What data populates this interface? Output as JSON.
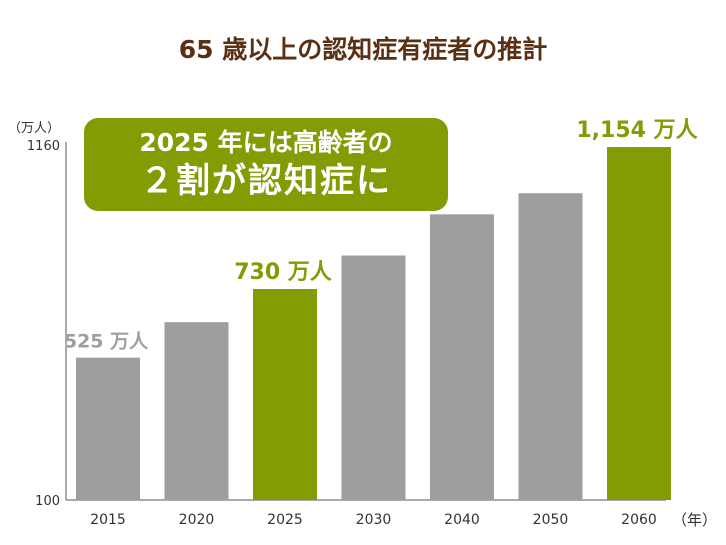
{
  "chart_data": {
    "type": "bar",
    "title": "65 歳以上の認知症有症者の推計",
    "y_unit_label": "（万人）",
    "x_unit_label": "（年）",
    "categories": [
      "2015",
      "2020",
      "2025",
      "2030",
      "2040",
      "2050",
      "2060"
    ],
    "values": [
      525,
      631,
      730,
      830,
      953,
      1016,
      1154
    ],
    "highlight": [
      false,
      false,
      true,
      false,
      false,
      false,
      true
    ],
    "ylim": [
      100,
      1160
    ],
    "y_ticks": [
      "1160",
      "100"
    ],
    "data_labels": [
      {
        "category": "2015",
        "text": "525 万人",
        "highlight": false
      },
      {
        "category": "2025",
        "text": "730 万人",
        "highlight": true
      },
      {
        "category": "2060",
        "text": "1,154 万人",
        "highlight": true
      }
    ],
    "grid": false,
    "legend": "none"
  },
  "callout": {
    "line1": "2025 年には高齢者の",
    "line2": "２割が認知症に"
  },
  "colors": {
    "title": "#5a2f12",
    "bar_default": "#9e9e9e",
    "bar_highlight": "#849b04",
    "label_default": "#9e9e9e",
    "label_highlight": "#849b04",
    "callout_bg": "#849b04",
    "axis": "#555555"
  }
}
